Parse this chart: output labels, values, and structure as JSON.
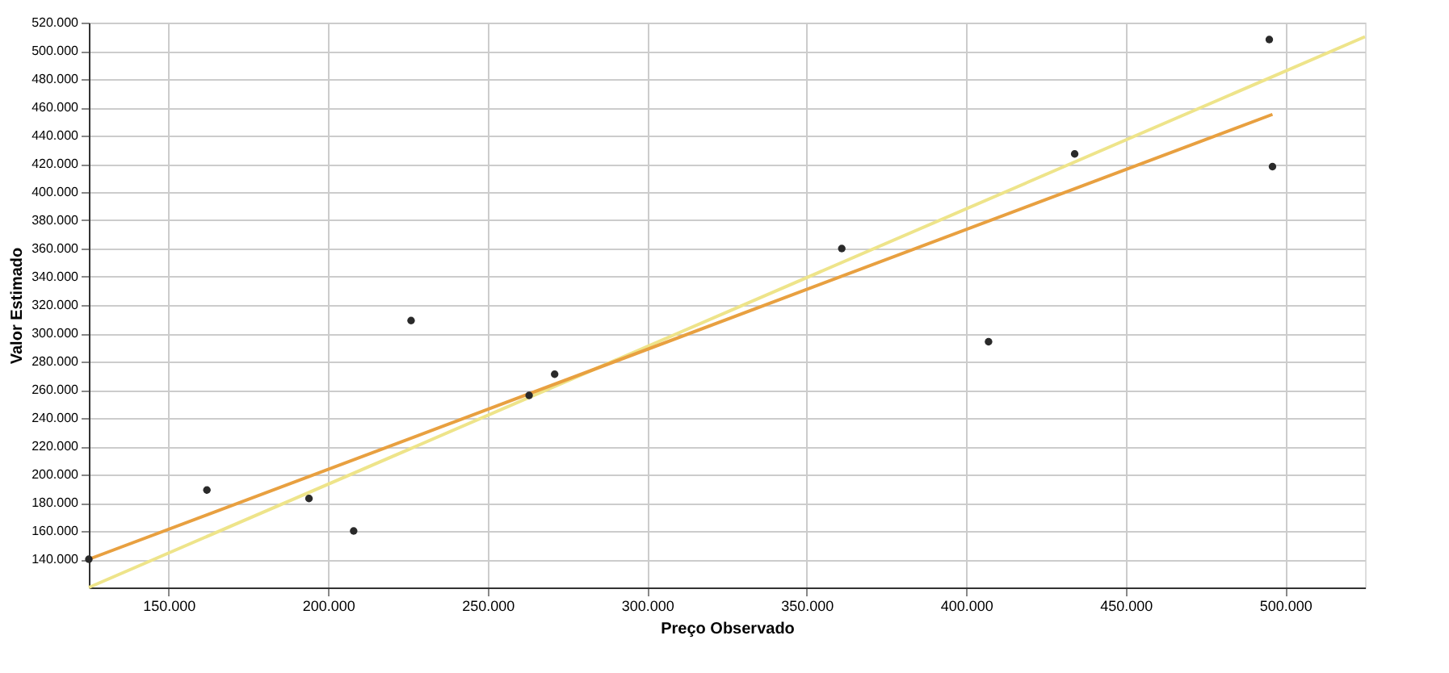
{
  "chart_data": {
    "type": "scatter",
    "xlabel": "Preço Observado",
    "ylabel": "Valor Estimado",
    "xlim": [
      125000,
      525000
    ],
    "ylim": [
      120000,
      520000
    ],
    "xticks": [
      {
        "value": 150000,
        "label": "150.000"
      },
      {
        "value": 200000,
        "label": "200.000"
      },
      {
        "value": 250000,
        "label": "250.000"
      },
      {
        "value": 300000,
        "label": "300.000"
      },
      {
        "value": 350000,
        "label": "350.000"
      },
      {
        "value": 400000,
        "label": "400.000"
      },
      {
        "value": 450000,
        "label": "450.000"
      },
      {
        "value": 500000,
        "label": "500.000"
      }
    ],
    "yticks": [
      {
        "value": 140000,
        "label": "140.000"
      },
      {
        "value": 160000,
        "label": "160.000"
      },
      {
        "value": 180000,
        "label": "180.000"
      },
      {
        "value": 200000,
        "label": "200.000"
      },
      {
        "value": 220000,
        "label": "220.000"
      },
      {
        "value": 240000,
        "label": "240.000"
      },
      {
        "value": 260000,
        "label": "260.000"
      },
      {
        "value": 280000,
        "label": "280.000"
      },
      {
        "value": 300000,
        "label": "300.000"
      },
      {
        "value": 320000,
        "label": "320.000"
      },
      {
        "value": 340000,
        "label": "340.000"
      },
      {
        "value": 360000,
        "label": "360.000"
      },
      {
        "value": 380000,
        "label": "380.000"
      },
      {
        "value": 400000,
        "label": "400.000"
      },
      {
        "value": 420000,
        "label": "420.000"
      },
      {
        "value": 440000,
        "label": "440.000"
      },
      {
        "value": 460000,
        "label": "460.000"
      },
      {
        "value": 480000,
        "label": "480.000"
      },
      {
        "value": 500000,
        "label": "500.000"
      },
      {
        "value": 520000,
        "label": "520.000"
      }
    ],
    "grid": true,
    "series": [
      {
        "color": "#2a2a2a",
        "marker": "circle",
        "x": [
          125000,
          162000,
          194000,
          208000,
          226000,
          263000,
          271000,
          361000,
          407000,
          434000,
          495000,
          496000
        ],
        "values": [
          140000,
          189000,
          183000,
          160000,
          309000,
          256000,
          271000,
          360000,
          294000,
          427000,
          508000,
          418000
        ]
      },
      {
        "type": "line",
        "color": "#eee48a",
        "line_style": "solid",
        "x": [
          125000,
          525000
        ],
        "values": [
          120000,
          510000
        ]
      },
      {
        "type": "line",
        "color": "#e8a040",
        "line_style": "solid",
        "x": [
          125000,
          496000
        ],
        "values": [
          140000,
          455000
        ]
      }
    ]
  }
}
